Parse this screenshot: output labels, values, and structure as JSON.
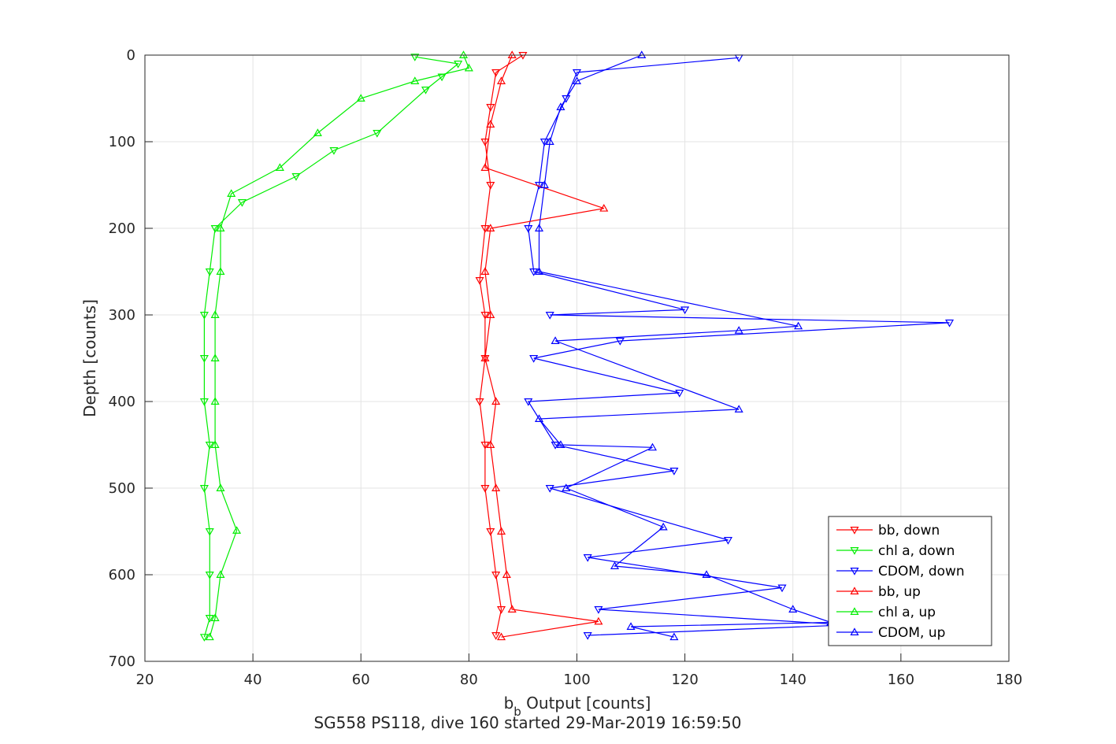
{
  "chart_data": {
    "type": "scatter",
    "title": "SG558 PS118, dive 160 started 29-Mar-2019 16:59:50",
    "xlabel_base": "b",
    "xlabel_sub": "b",
    "xlabel_rest": " Output [counts]",
    "ylabel": "Depth [counts]",
    "xlim": [
      20,
      180
    ],
    "ylim": [
      0,
      700
    ],
    "y_reversed": true,
    "grid": true,
    "legend_placement": "bottom-right",
    "x_ticks": [
      20,
      40,
      60,
      80,
      100,
      120,
      140,
      160,
      180
    ],
    "y_ticks": [
      0,
      100,
      200,
      300,
      400,
      500,
      600,
      700
    ],
    "series": [
      {
        "name": "bb, down",
        "color": "#ff0000",
        "marker": "triangle-down",
        "points": [
          [
            90,
            0
          ],
          [
            85,
            20
          ],
          [
            84,
            60
          ],
          [
            83,
            100
          ],
          [
            84,
            150
          ],
          [
            83,
            200
          ],
          [
            82,
            260
          ],
          [
            83,
            300
          ],
          [
            83,
            350
          ],
          [
            82,
            400
          ],
          [
            83,
            450
          ],
          [
            83,
            500
          ],
          [
            84,
            550
          ],
          [
            85,
            600
          ],
          [
            86,
            640
          ],
          [
            85,
            670
          ]
        ]
      },
      {
        "name": "chl a, down",
        "color": "#00ee00",
        "marker": "triangle-down",
        "points": [
          [
            70,
            2
          ],
          [
            78,
            10
          ],
          [
            75,
            25
          ],
          [
            72,
            40
          ],
          [
            63,
            90
          ],
          [
            55,
            110
          ],
          [
            48,
            140
          ],
          [
            38,
            170
          ],
          [
            33,
            200
          ],
          [
            32,
            250
          ],
          [
            31,
            300
          ],
          [
            31,
            350
          ],
          [
            31,
            400
          ],
          [
            32,
            450
          ],
          [
            31,
            500
          ],
          [
            32,
            550
          ],
          [
            32,
            600
          ],
          [
            32,
            650
          ],
          [
            31,
            672
          ]
        ]
      },
      {
        "name": "CDOM, down",
        "color": "#0000ff",
        "marker": "triangle-down",
        "points": [
          [
            130,
            3
          ],
          [
            100,
            20
          ],
          [
            98,
            50
          ],
          [
            94,
            100
          ],
          [
            93,
            150
          ],
          [
            91,
            200
          ],
          [
            92,
            250
          ],
          [
            120,
            294
          ],
          [
            95,
            300
          ],
          [
            169,
            309
          ],
          [
            108,
            330
          ],
          [
            92,
            350
          ],
          [
            119,
            390
          ],
          [
            91,
            400
          ],
          [
            96,
            450
          ],
          [
            118,
            480
          ],
          [
            95,
            500
          ],
          [
            128,
            560
          ],
          [
            102,
            580
          ],
          [
            138,
            615
          ],
          [
            104,
            640
          ],
          [
            150,
            658
          ],
          [
            102,
            670
          ]
        ]
      },
      {
        "name": "bb, up",
        "color": "#ff0000",
        "marker": "triangle-up",
        "points": [
          [
            88,
            0
          ],
          [
            86,
            30
          ],
          [
            84,
            80
          ],
          [
            83,
            130
          ],
          [
            105,
            177
          ],
          [
            84,
            200
          ],
          [
            83,
            250
          ],
          [
            84,
            300
          ],
          [
            83,
            350
          ],
          [
            85,
            400
          ],
          [
            84,
            450
          ],
          [
            85,
            500
          ],
          [
            86,
            550
          ],
          [
            87,
            600
          ],
          [
            88,
            640
          ],
          [
            104,
            654
          ],
          [
            86,
            672
          ]
        ]
      },
      {
        "name": "chl a, up",
        "color": "#00ee00",
        "marker": "triangle-up",
        "points": [
          [
            79,
            0
          ],
          [
            80,
            15
          ],
          [
            70,
            30
          ],
          [
            60,
            50
          ],
          [
            52,
            90
          ],
          [
            45,
            130
          ],
          [
            36,
            160
          ],
          [
            34,
            200
          ],
          [
            34,
            250
          ],
          [
            33,
            300
          ],
          [
            33,
            350
          ],
          [
            33,
            400
          ],
          [
            33,
            450
          ],
          [
            34,
            500
          ],
          [
            37,
            549
          ],
          [
            34,
            600
          ],
          [
            33,
            650
          ],
          [
            32,
            672
          ]
        ]
      },
      {
        "name": "CDOM, up",
        "color": "#0000ff",
        "marker": "triangle-up",
        "points": [
          [
            112,
            0
          ],
          [
            100,
            30
          ],
          [
            97,
            60
          ],
          [
            95,
            100
          ],
          [
            94,
            150
          ],
          [
            93,
            200
          ],
          [
            93,
            250
          ],
          [
            141,
            313
          ],
          [
            130,
            318
          ],
          [
            96,
            330
          ],
          [
            130,
            409
          ],
          [
            93,
            420
          ],
          [
            97,
            450
          ],
          [
            114,
            453
          ],
          [
            98,
            500
          ],
          [
            116,
            545
          ],
          [
            107,
            590
          ],
          [
            124,
            600
          ],
          [
            140,
            640
          ],
          [
            147,
            655
          ],
          [
            110,
            660
          ],
          [
            118,
            672
          ]
        ]
      }
    ]
  }
}
